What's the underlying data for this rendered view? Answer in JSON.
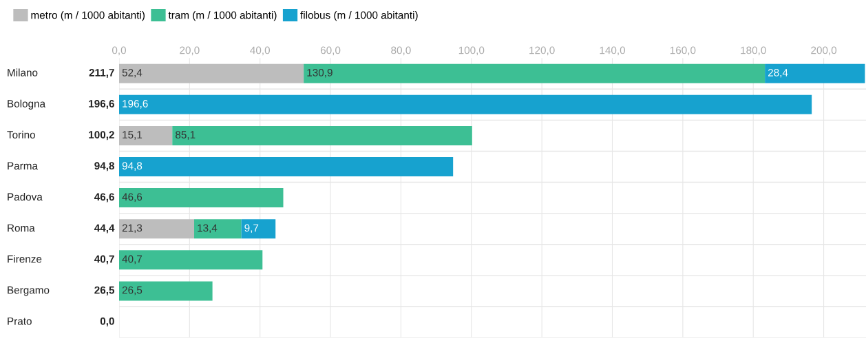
{
  "chart_data": {
    "type": "bar",
    "orientation": "horizontal",
    "stacked": true,
    "categories": [
      "Milano",
      "Bologna",
      "Torino",
      "Parma",
      "Padova",
      "Roma",
      "Firenze",
      "Bergamo",
      "Prato"
    ],
    "series": [
      {
        "name": "metro (m / 1000 abitanti)",
        "color": "#bdbdbd",
        "values": [
          52.4,
          null,
          15.1,
          null,
          null,
          21.3,
          null,
          null,
          null
        ],
        "value_labels": [
          "52,4",
          null,
          "15,1",
          null,
          null,
          "21,3",
          null,
          null,
          null
        ]
      },
      {
        "name": "tram (m / 1000 abitanti)",
        "color": "#3dbf94",
        "values": [
          130.9,
          null,
          85.1,
          null,
          46.6,
          13.4,
          40.7,
          26.5,
          null
        ],
        "value_labels": [
          "130,9",
          null,
          "85,1",
          null,
          "46,6",
          "13,4",
          "40,7",
          "26,5",
          null
        ]
      },
      {
        "name": "filobus (m / 1000 abitanti)",
        "color": "#17a2cf",
        "values": [
          28.4,
          196.6,
          null,
          94.8,
          null,
          9.7,
          null,
          null,
          null
        ],
        "value_labels": [
          "28,4",
          "196,6",
          null,
          "94,8",
          null,
          "9,7",
          null,
          null,
          null
        ]
      }
    ],
    "totals": [
      "211,7",
      "196,6",
      "100,2",
      "94,8",
      "46,6",
      "44,4",
      "40,7",
      "26,5",
      "0,0"
    ],
    "xlim": [
      0,
      212
    ],
    "xticks": [
      {
        "value": 0,
        "label": "0,0"
      },
      {
        "value": 20,
        "label": "20,0"
      },
      {
        "value": 40,
        "label": "40,0"
      },
      {
        "value": 60,
        "label": "60,0"
      },
      {
        "value": 80,
        "label": "80,0"
      },
      {
        "value": 100,
        "label": "100,0"
      },
      {
        "value": 120,
        "label": "120,0"
      },
      {
        "value": 140,
        "label": "140,0"
      },
      {
        "value": 160,
        "label": "160,0"
      },
      {
        "value": 180,
        "label": "180,0"
      },
      {
        "value": 200,
        "label": "200,0"
      }
    ],
    "grid": "x",
    "legend": "top left"
  }
}
